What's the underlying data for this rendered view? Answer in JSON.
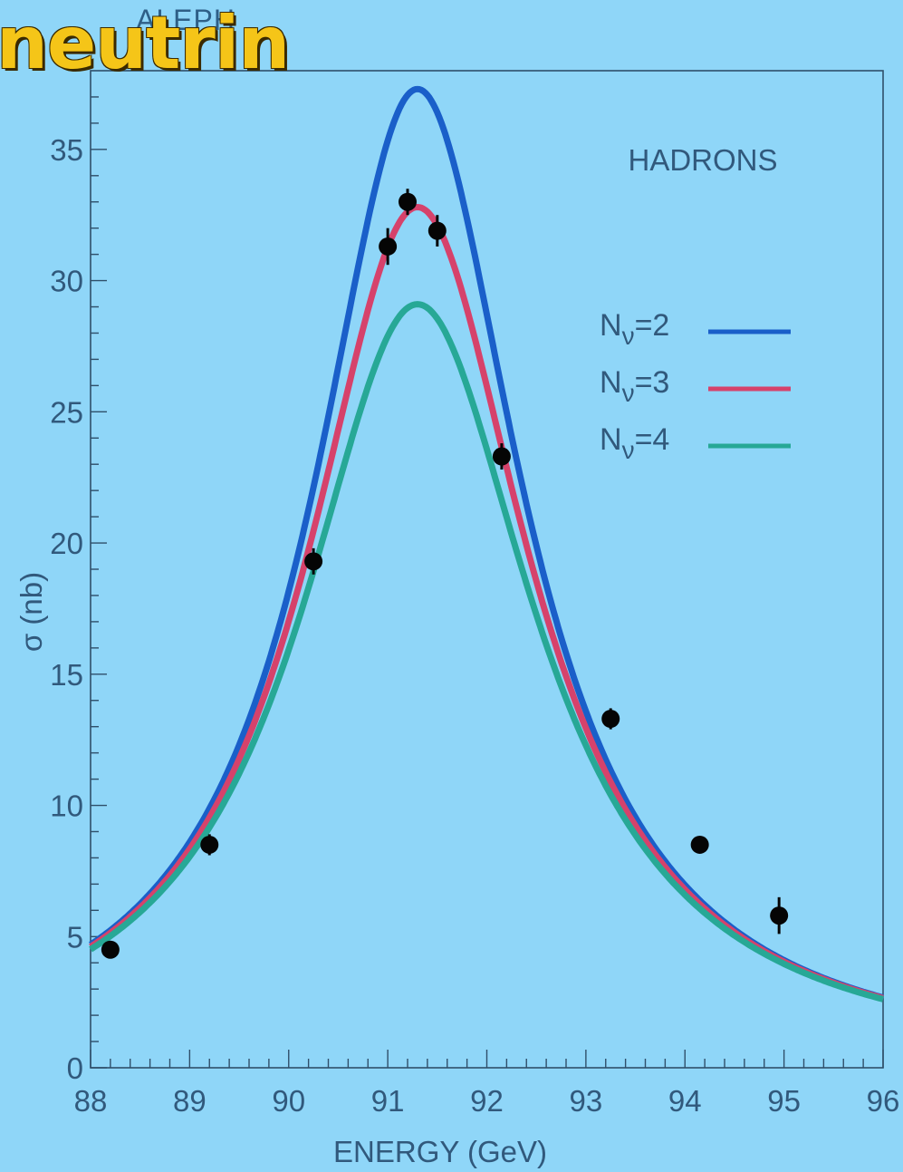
{
  "overlay_title": "neutrin",
  "experiment_label": "ALEPH",
  "chart_data": {
    "type": "line",
    "title": "",
    "channel_label": "HADRONS",
    "xlabel": "ENERGY (GeV)",
    "ylabel": "σ (nb)",
    "xlim": [
      88,
      96
    ],
    "ylim": [
      0,
      38
    ],
    "x_ticks": [
      "88",
      "89",
      "90",
      "91",
      "92",
      "93",
      "94",
      "95",
      "96"
    ],
    "y_ticks": [
      "0",
      "5",
      "10",
      "15",
      "20",
      "25",
      "30",
      "35"
    ],
    "legend_position": "right",
    "series": [
      {
        "name": "Nν=2",
        "name_base": "N",
        "name_sub": "ν",
        "name_rest": "=2",
        "color": "#1a5fc9",
        "peak": 37.3,
        "mass": 91.3,
        "width": 2.55
      },
      {
        "name": "Nν=3",
        "name_base": "N",
        "name_sub": "ν",
        "name_rest": "=3",
        "color": "#d6426b",
        "peak": 32.8,
        "mass": 91.3,
        "width": 2.72
      },
      {
        "name": "Nν=4",
        "name_base": "N",
        "name_sub": "ν",
        "name_rest": "=4",
        "color": "#27a896",
        "peak": 29.1,
        "mass": 91.3,
        "width": 2.88
      }
    ],
    "data_points": [
      {
        "x": 88.2,
        "y": 4.5,
        "err": 0.3
      },
      {
        "x": 89.2,
        "y": 8.5,
        "err": 0.4
      },
      {
        "x": 90.25,
        "y": 19.3,
        "err": 0.5
      },
      {
        "x": 91.0,
        "y": 31.3,
        "err": 0.7
      },
      {
        "x": 91.2,
        "y": 33.0,
        "err": 0.5
      },
      {
        "x": 91.5,
        "y": 31.9,
        "err": 0.6
      },
      {
        "x": 92.15,
        "y": 23.3,
        "err": 0.5
      },
      {
        "x": 93.25,
        "y": 13.3,
        "err": 0.4
      },
      {
        "x": 94.15,
        "y": 8.5,
        "err": 0.3
      },
      {
        "x": 94.95,
        "y": 5.8,
        "err": 0.7
      }
    ]
  }
}
